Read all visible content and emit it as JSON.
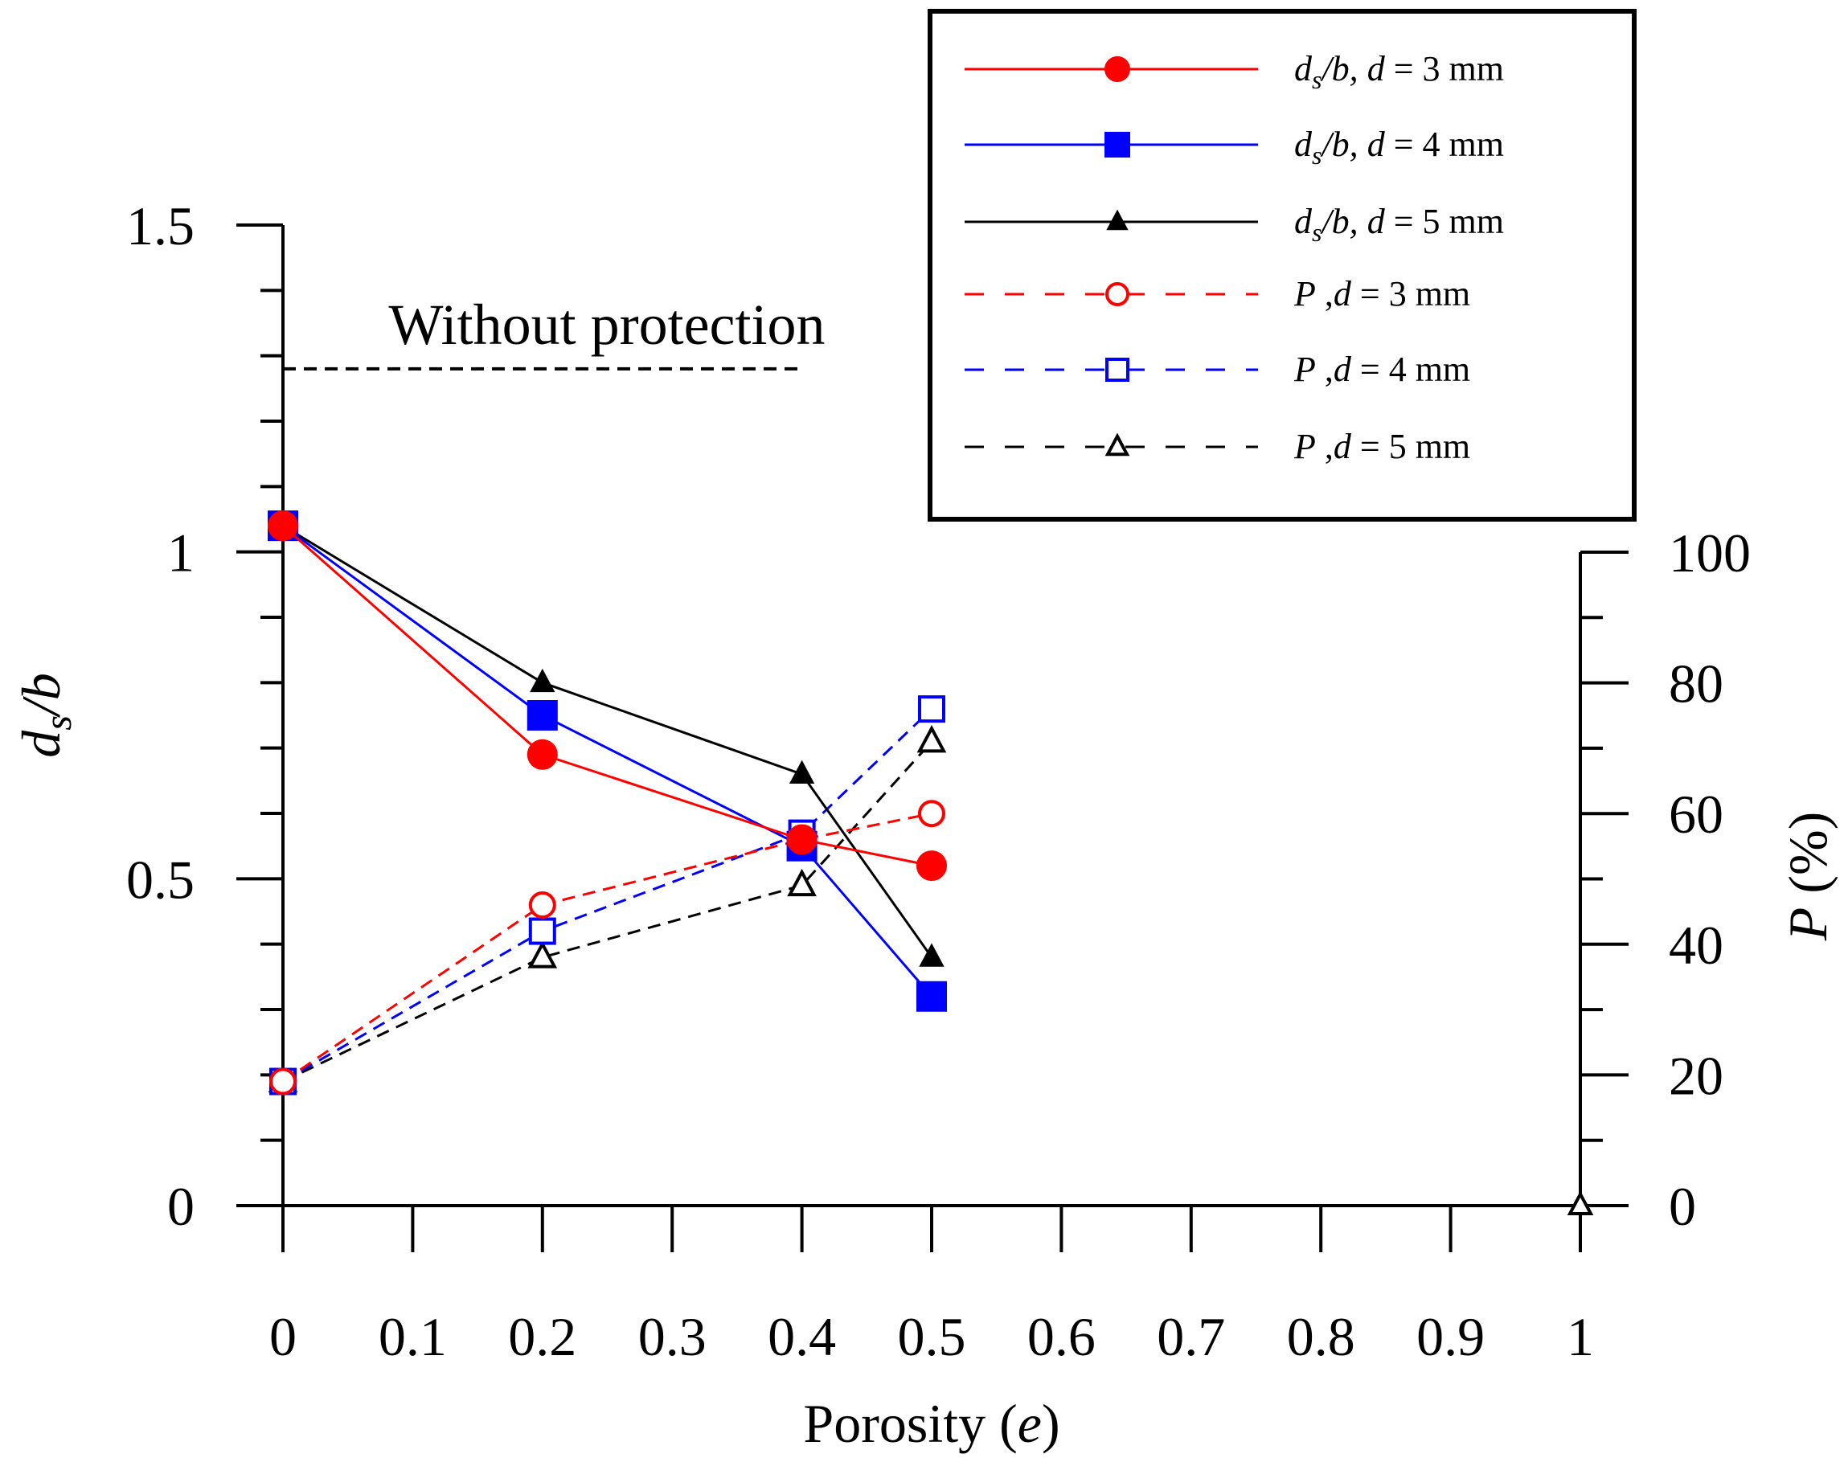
{
  "chart_data": {
    "type": "line",
    "title": "",
    "xlabel": "Porosity (e)",
    "xlabel_main": "Porosity (",
    "xlabel_var": "e",
    "xlabel_close": ")",
    "ylabel": "ds/b",
    "ylabel_d": "d",
    "ylabel_sub": "s",
    "ylabel_rest": "/b",
    "y2label": "P (%)",
    "y2label_var": "P",
    "y2label_unit": "(%)",
    "xlim": [
      0,
      1
    ],
    "ylim": [
      0,
      1.5
    ],
    "y2lim": [
      0,
      100
    ],
    "x_ticks": [
      "0",
      "0.1",
      "0.2",
      "0.3",
      "0.4",
      "0.5",
      "0.6",
      "0.7",
      "0.8",
      "0.9",
      "1"
    ],
    "y_ticks": [
      "0",
      "0.5",
      "1",
      "1.5"
    ],
    "y2_ticks": [
      "0",
      "20",
      "40",
      "60",
      "80",
      "100"
    ],
    "legend_position": "top-right",
    "annotation": {
      "text": "Without protection",
      "y": 1.28,
      "x_range": [
        0,
        0.4
      ]
    },
    "x": [
      0,
      0.2,
      0.4,
      0.5
    ],
    "series": [
      {
        "name": "ds/b, d = 3 mm",
        "legend_prefix": "d",
        "legend_sub": "s",
        "legend_mid": "/b, ",
        "legend_var": "d",
        "legend_suffix": " = 3 mm",
        "axis": "left",
        "color": "#ff0000",
        "dash": "solid",
        "marker": "circle",
        "filled": true,
        "values": [
          1.04,
          0.69,
          0.56,
          0.52
        ]
      },
      {
        "name": "ds/b, d = 4 mm",
        "legend_prefix": "d",
        "legend_sub": "s",
        "legend_mid": "/b, ",
        "legend_var": "d",
        "legend_suffix": " = 4 mm",
        "axis": "left",
        "color": "#0000ff",
        "dash": "solid",
        "marker": "square",
        "filled": true,
        "values": [
          1.04,
          0.75,
          0.55,
          0.32
        ]
      },
      {
        "name": "ds/b, d = 5 mm",
        "legend_prefix": "d",
        "legend_sub": "s",
        "legend_mid": "/b, ",
        "legend_var": "d",
        "legend_suffix": " = 5 mm",
        "axis": "left",
        "color": "#000000",
        "dash": "solid",
        "marker": "triangle",
        "filled": true,
        "values": [
          1.04,
          0.8,
          0.66,
          0.38
        ]
      },
      {
        "name": "P ,d = 3 mm",
        "legend_prefix": "P",
        "legend_sub": "",
        "legend_mid": "     ,",
        "legend_var": "d",
        "legend_suffix": " = 3 mm",
        "axis": "right",
        "color": "#ff0000",
        "dash": "dashed",
        "marker": "circle",
        "filled": false,
        "values": [
          19,
          46,
          56,
          60
        ]
      },
      {
        "name": "P ,d = 4 mm",
        "legend_prefix": "P",
        "legend_sub": "",
        "legend_mid": "     ,",
        "legend_var": "d",
        "legend_suffix": " = 4 mm",
        "axis": "right",
        "color": "#0000ff",
        "dash": "dashed",
        "marker": "square",
        "filled": false,
        "values": [
          19,
          42,
          57,
          76
        ]
      },
      {
        "name": "P ,d = 5 mm",
        "legend_prefix": "P",
        "legend_sub": "",
        "legend_mid": "     ,",
        "legend_var": "d",
        "legend_suffix": " = 5 mm",
        "axis": "right",
        "color": "#000000",
        "dash": "dashed",
        "marker": "triangle",
        "filled": false,
        "values": [
          19,
          38,
          49,
          71
        ]
      }
    ],
    "extra_points": [
      {
        "axis": "right",
        "x": 1,
        "value": 0,
        "color": "#000000",
        "marker": "triangle",
        "filled": false
      }
    ]
  }
}
